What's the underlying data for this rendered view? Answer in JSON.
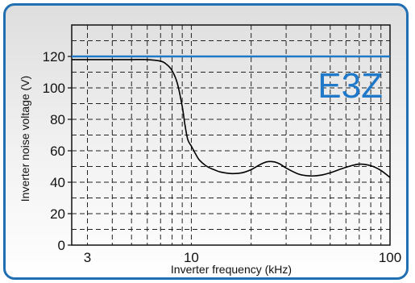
{
  "chart_data": {
    "type": "line",
    "title": "",
    "xlabel": "Inverter frequency (kHz)",
    "ylabel": "Inverter noise voltage (V)",
    "x_scale": "log",
    "xlim": [
      2.5,
      100
    ],
    "ylim": [
      0,
      140
    ],
    "x_tick_labels": [
      {
        "value": 3,
        "label": "3"
      },
      {
        "value": 10,
        "label": "10"
      },
      {
        "value": 100,
        "label": "100"
      }
    ],
    "y_ticks": [
      0,
      20,
      40,
      60,
      80,
      100,
      120
    ],
    "grid": true,
    "annotation": "E3Z",
    "reference_line": {
      "y": 120,
      "color": "#1f78c8"
    },
    "series": [
      {
        "color": "#000000",
        "x": [
          2.5,
          3,
          4,
          5,
          6,
          7,
          7.5,
          8,
          8.5,
          9,
          9.3,
          9.6,
          10,
          10.5,
          11,
          12,
          13,
          14,
          16,
          18,
          20,
          22,
          24,
          26,
          28,
          30,
          35,
          40,
          45,
          50,
          60,
          70,
          80,
          90,
          100
        ],
        "values": [
          118,
          118,
          118,
          118,
          118,
          117,
          115,
          111,
          103,
          88,
          76,
          67,
          63,
          58,
          54,
          50,
          48,
          46.5,
          45.5,
          46,
          48,
          51,
          53,
          53,
          51.5,
          49,
          45,
          44,
          44.5,
          46,
          49.5,
          51.5,
          50.5,
          47.5,
          43
        ]
      }
    ]
  }
}
